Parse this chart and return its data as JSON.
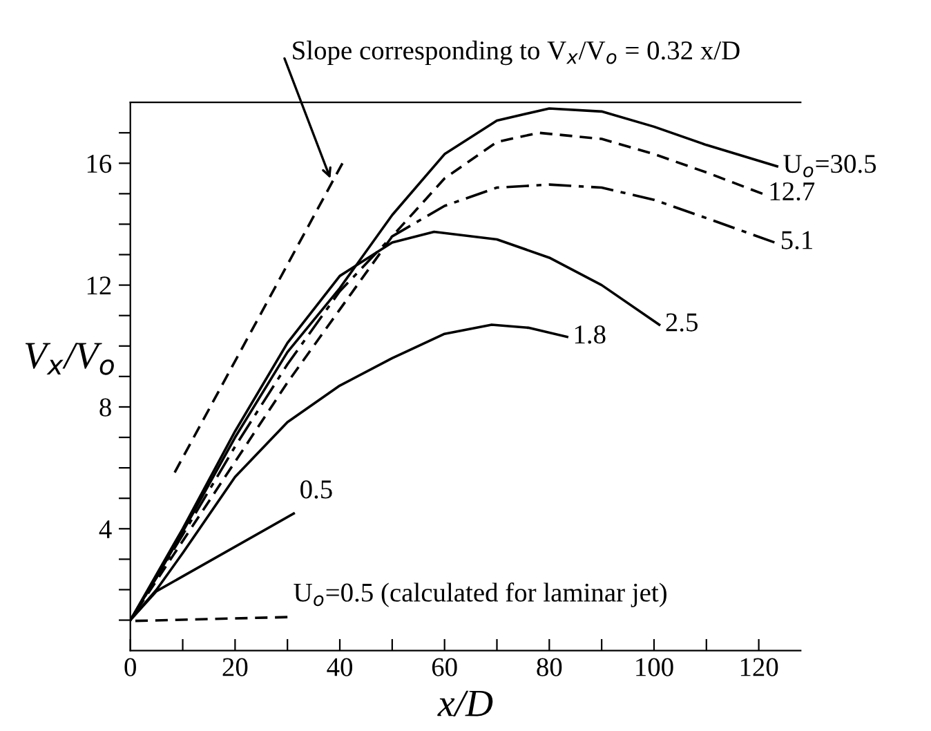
{
  "chart_data": {
    "type": "line",
    "xlabel": "x/D",
    "ylabel": "V$_{x}$/V$_{o}$",
    "xlim": [
      0,
      128
    ],
    "ylim": [
      0,
      18
    ],
    "xticks": [
      0,
      {
        "value": 10,
        "label": null
      },
      20,
      {
        "value": 30,
        "label": null
      },
      40,
      {
        "value": 50,
        "label": null
      },
      60,
      {
        "value": 70,
        "label": null
      },
      80,
      {
        "value": 90,
        "label": null
      },
      100,
      {
        "value": 110,
        "label": null
      },
      120
    ],
    "yticks": [
      {
        "value": 1,
        "label": null
      },
      {
        "value": 2,
        "label": null
      },
      {
        "value": 3,
        "label": null
      },
      4,
      {
        "value": 5,
        "label": null
      },
      {
        "value": 6,
        "label": null
      },
      {
        "value": 7,
        "label": null
      },
      8,
      {
        "value": 9,
        "label": null
      },
      {
        "value": 10,
        "label": null
      },
      {
        "value": 11,
        "label": null
      },
      12,
      {
        "value": 13,
        "label": null
      },
      {
        "value": 14,
        "label": null
      },
      {
        "value": 15,
        "label": null
      },
      16,
      {
        "value": 17,
        "label": null
      }
    ],
    "grid": false,
    "legend": false,
    "marker": "none",
    "series": [
      {
        "name": "U$_{o}$=30.5",
        "color": "#000000",
        "line_style": "solid",
        "x": [
          0,
          5,
          10,
          20,
          30,
          40,
          50,
          60,
          70,
          80,
          90,
          100,
          110,
          123.5
        ],
        "values": [
          1,
          2.4,
          3.9,
          7.0,
          9.8,
          11.9,
          14.3,
          16.3,
          17.4,
          17.8,
          17.7,
          17.2,
          16.6,
          15.9
        ]
      },
      {
        "name": "12.7",
        "color": "#000000",
        "line_style": "dashed",
        "x": [
          0,
          10,
          20,
          30,
          40,
          50,
          60,
          70,
          78,
          90,
          100,
          110,
          120.7
        ],
        "values": [
          1,
          3.6,
          6.2,
          8.8,
          11.2,
          13.6,
          15.5,
          16.7,
          17.0,
          16.8,
          16.3,
          15.7,
          15.0
        ]
      },
      {
        "name": "5.1",
        "color": "#000000",
        "line_style": "dashdot",
        "x": [
          0,
          10,
          20,
          30,
          40,
          50,
          60,
          70,
          80,
          90,
          100,
          110,
          123
        ],
        "values": [
          1,
          3.8,
          6.7,
          9.4,
          11.8,
          13.6,
          14.6,
          15.2,
          15.3,
          15.2,
          14.8,
          14.2,
          13.4
        ]
      },
      {
        "name": "2.5",
        "color": "#000000",
        "line_style": "solid",
        "x": [
          0,
          10,
          20,
          30,
          40,
          50,
          58,
          70,
          80,
          90,
          101
        ],
        "values": [
          1,
          4.0,
          7.2,
          10.1,
          12.3,
          13.4,
          13.75,
          13.5,
          12.9,
          12.0,
          10.7
        ]
      },
      {
        "name": "1.8",
        "color": "#000000",
        "line_style": "solid",
        "x": [
          0,
          5,
          10,
          20,
          30,
          40,
          50,
          60,
          69,
          76,
          83.4
        ],
        "values": [
          1,
          2.0,
          3.2,
          5.7,
          7.5,
          8.7,
          9.6,
          10.4,
          10.7,
          10.6,
          10.3
        ]
      },
      {
        "name": "0.5",
        "color": "#000000",
        "line_style": "solid",
        "x": [
          0,
          5,
          31.2
        ],
        "values": [
          1,
          1.95,
          4.5
        ]
      },
      {
        "name": "U$_{o}$=0.5 (calculated for laminar jet)",
        "color": "#000000",
        "line_style": "dashed",
        "x": [
          0,
          30
        ],
        "values": [
          0.97,
          1.1
        ]
      },
      {
        "color": "#000000",
        "line_style": "dashed",
        "x": [
          8.0,
          40.5
        ],
        "values": [
          5.7,
          16.0
        ]
      }
    ],
    "annotations": [
      {
        "text": "Slope corresponding to V$_{x}$/V$_{o}$ = 0.32 x/D",
        "x": 38.2,
        "y": 15.5
      }
    ]
  }
}
